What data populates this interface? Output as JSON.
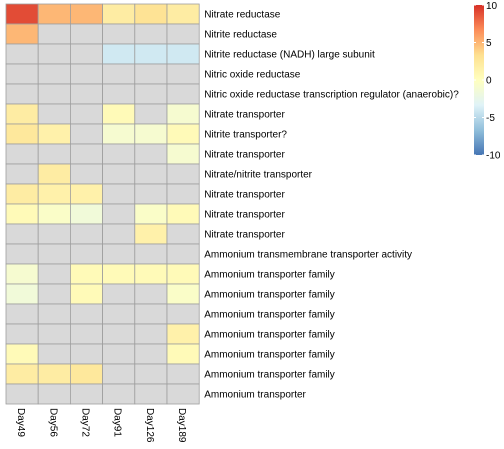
{
  "chart_data": {
    "type": "heatmap",
    "columns": [
      "Day49",
      "Day56",
      "Day72",
      "Day91",
      "Day126",
      "Day189"
    ],
    "rows": [
      "Nitrate reductase",
      "Nitrite reductase",
      "Nitrite reductase (NADH) large subunit",
      "Nitric oxide reductase",
      "Nitric oxide reductase transcription regulator (anaerobic)?",
      "Nitrate transporter",
      "Nitrite transporter?",
      "Nitrate transporter",
      "Nitrate/nitrite transporter",
      "Nitrate transporter",
      "Nitrate transporter",
      "Nitrate transporter",
      "Ammonium transmembrane transporter activity",
      "Ammonium transporter family",
      "Ammonium transporter family",
      "Ammonium transporter family",
      "Ammonium transporter family",
      "Ammonium transporter family",
      "Ammonium transporter family",
      "Ammonium transporter"
    ],
    "values": [
      [
        9,
        5,
        5,
        2,
        3,
        2
      ],
      [
        5,
        null,
        null,
        null,
        null,
        null
      ],
      [
        null,
        null,
        null,
        -4,
        -4,
        -4
      ],
      [
        null,
        null,
        null,
        null,
        null,
        null
      ],
      [
        null,
        null,
        null,
        null,
        null,
        null
      ],
      [
        2,
        null,
        null,
        0.5,
        null,
        -1
      ],
      [
        2.5,
        1.5,
        null,
        -1,
        -1,
        0.5
      ],
      [
        null,
        null,
        null,
        null,
        null,
        -1
      ],
      [
        null,
        2,
        null,
        null,
        null,
        null
      ],
      [
        2,
        1.5,
        1.5,
        null,
        null,
        null
      ],
      [
        0.5,
        -0.5,
        -1.5,
        null,
        -0.5,
        0.5
      ],
      [
        null,
        null,
        null,
        null,
        1.5,
        null
      ],
      [
        null,
        null,
        null,
        null,
        null,
        null
      ],
      [
        -1,
        null,
        0.5,
        0.5,
        0.5,
        0.5
      ],
      [
        -1.5,
        null,
        0.5,
        null,
        null,
        -0.5
      ],
      [
        null,
        null,
        null,
        null,
        null,
        null
      ],
      [
        null,
        null,
        null,
        null,
        null,
        1.5
      ],
      [
        0.5,
        null,
        null,
        null,
        null,
        0.5
      ],
      [
        2,
        2,
        2.5,
        null,
        null,
        null
      ],
      [
        null,
        null,
        null,
        null,
        null,
        null
      ]
    ],
    "missing_color": "#d9d9d9",
    "legend": {
      "ticks": [
        10,
        5,
        0,
        -5,
        -10
      ],
      "range": [
        -10,
        10
      ],
      "colors": [
        "#4575b4",
        "#91bfdb",
        "#e0f3f8",
        "#ffffbf",
        "#fee090",
        "#fc8d59",
        "#d73027"
      ],
      "placement": "right"
    },
    "xlabel": "",
    "ylabel": "",
    "title": ""
  }
}
